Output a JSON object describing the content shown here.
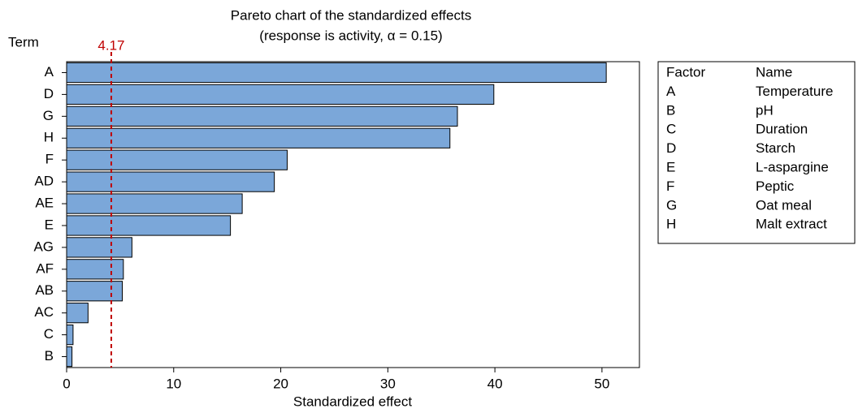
{
  "chart_data": {
    "type": "hbar",
    "title": [
      "Pareto chart of the standardized effects",
      "(response is activity, α = 0.15)"
    ],
    "y_axis_label": "Term",
    "x_axis_label": "Standardized effect",
    "categories": [
      "A",
      "D",
      "G",
      "H",
      "F",
      "AD",
      "AE",
      "E",
      "AG",
      "AF",
      "AB",
      "AC",
      "C",
      "B"
    ],
    "values": [
      50.4,
      39.9,
      36.5,
      35.8,
      20.6,
      19.4,
      16.4,
      15.3,
      6.1,
      5.3,
      5.2,
      2.0,
      0.6,
      0.5
    ],
    "color": "#7ba7d9",
    "xlim": [
      0,
      53.5
    ],
    "xticks": [
      0,
      10,
      20,
      30,
      40,
      50
    ],
    "reference_line": {
      "value": 4.17,
      "color": "#c00000"
    },
    "legend_table": {
      "header": [
        "Factor",
        "Name"
      ],
      "rows": [
        [
          "A",
          "Temperature"
        ],
        [
          "B",
          "pH"
        ],
        [
          "C",
          "Duration"
        ],
        [
          "D",
          "Starch"
        ],
        [
          "E",
          "L-aspargine"
        ],
        [
          "F",
          "Peptic"
        ],
        [
          "G",
          "Oat meal"
        ],
        [
          "H",
          "Malt extract"
        ]
      ]
    }
  }
}
